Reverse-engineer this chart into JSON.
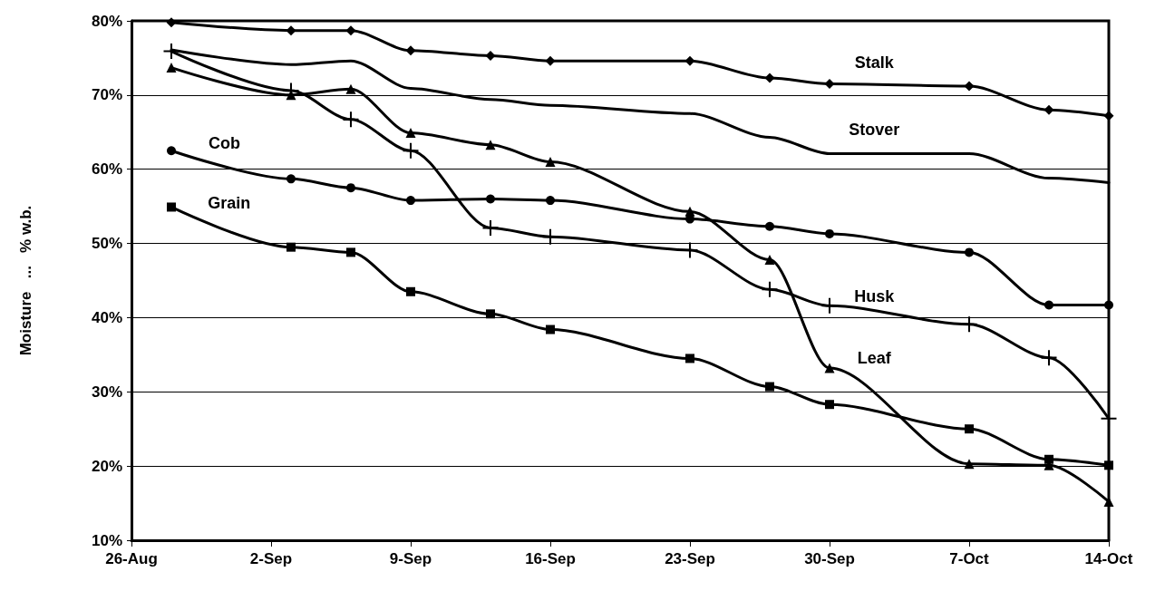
{
  "chart_data": {
    "type": "line",
    "ylabel": "Moisture   ...   % w.b.",
    "x": [
      "--08-28",
      "--09-03",
      "--09-06",
      "--09-09",
      "--09-13",
      "--09-16",
      "--09-23",
      "--09-27",
      "--09-30",
      "--10-07",
      "--10-11",
      "--10-14"
    ],
    "series": [
      {
        "name": "Stalk",
        "color": "#000000",
        "marker": "diamond",
        "values": [
          79.8,
          78.7,
          78.7,
          76.0,
          75.3,
          74.6,
          74.6,
          72.3,
          71.5,
          71.2,
          68.0,
          67.2
        ]
      },
      {
        "name": "Stover",
        "color": "#000000",
        "marker": "none",
        "values": [
          76.1,
          74.1,
          74.6,
          70.9,
          69.4,
          68.6,
          67.5,
          64.3,
          62.1,
          62.1,
          58.8,
          58.2
        ]
      },
      {
        "name": "Husk",
        "color": "#000000",
        "marker": "cross",
        "values": [
          75.9,
          70.6,
          66.7,
          62.5,
          52.1,
          50.9,
          49.1,
          43.8,
          41.6,
          39.1,
          34.6,
          26.4
        ]
      },
      {
        "name": "Leaf",
        "color": "#000000",
        "marker": "triangle",
        "values": [
          73.7,
          70.0,
          70.8,
          64.9,
          63.3,
          61.0,
          54.3,
          47.8,
          33.2,
          20.3,
          20.1,
          15.2
        ]
      },
      {
        "name": "Cob",
        "color": "#000000",
        "marker": "circle",
        "values": [
          62.5,
          58.7,
          57.5,
          55.8,
          56.0,
          55.8,
          53.3,
          52.3,
          51.3,
          48.8,
          41.7,
          41.7
        ]
      },
      {
        "name": "Grain",
        "color": "#000000",
        "marker": "square",
        "values": [
          54.9,
          49.5,
          48.8,
          43.5,
          40.5,
          38.4,
          34.5,
          30.7,
          28.3,
          25.0,
          20.9,
          20.1
        ]
      }
    ],
    "xlim": [
      "--08-26",
      "--10-14"
    ],
    "xticks": [
      {
        "value": "--08-26",
        "label": "26-Aug"
      },
      {
        "value": "--09-02",
        "label": "2-Sep"
      },
      {
        "value": "--09-09",
        "label": "9-Sep"
      },
      {
        "value": "--09-16",
        "label": "16-Sep"
      },
      {
        "value": "--09-23",
        "label": "23-Sep"
      },
      {
        "value": "--09-30",
        "label": "30-Sep"
      },
      {
        "value": "--10-07",
        "label": "7-Oct"
      },
      {
        "value": "--10-14",
        "label": "14-Oct"
      }
    ],
    "ylim": [
      10,
      80
    ],
    "yticks": [
      {
        "value": 10,
        "label": "10%"
      },
      {
        "value": 20,
        "label": "20%"
      },
      {
        "value": 30,
        "label": "30%"
      },
      {
        "value": 40,
        "label": "40%"
      },
      {
        "value": 50,
        "label": "50%"
      },
      {
        "value": 60,
        "label": "60%"
      },
      {
        "value": 70,
        "label": "70%"
      },
      {
        "value": 80,
        "label": "80%"
      }
    ],
    "grid": "y",
    "legend": false,
    "line_style": "solid"
  }
}
